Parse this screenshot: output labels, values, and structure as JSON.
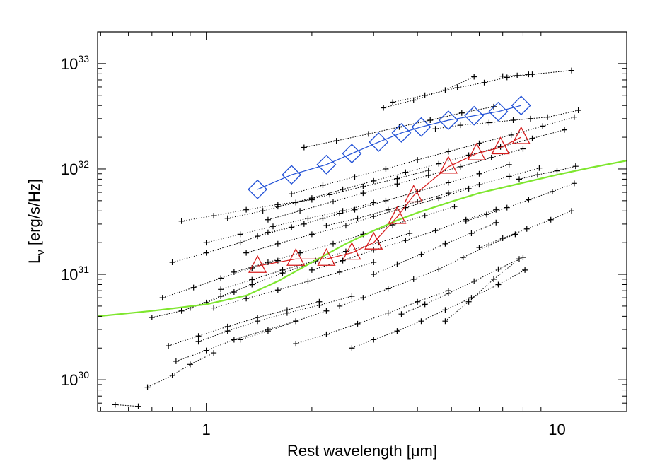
{
  "chart_data": {
    "type": "scatter",
    "title": "",
    "xlabel": "Rest wavelength [μm]",
    "ylabel_main": "L",
    "ylabel_sub": "ν",
    "ylabel_tail": " [erg/s/Hz]",
    "x_scale": "log",
    "y_scale": "log",
    "xlim": [
      0.49,
      15.8
    ],
    "ylim": [
      5e+29,
      2e+33
    ],
    "grid": false,
    "legend": "none",
    "x_ticks": [
      {
        "value": 1,
        "label": "1"
      },
      {
        "value": 10,
        "label": "10"
      }
    ],
    "y_ticks": [
      {
        "value": 1e+30,
        "base": "10",
        "exp": "30"
      },
      {
        "value": 1e+31,
        "base": "10",
        "exp": "31"
      },
      {
        "value": 1e+32,
        "base": "10",
        "exp": "32"
      },
      {
        "value": 1e+33,
        "base": "10",
        "exp": "33"
      }
    ],
    "series": [
      {
        "style": "diamond",
        "color": "#1f4fd6",
        "x": [
          1.4,
          1.75,
          2.2,
          2.6,
          3.1,
          3.6,
          4.1,
          4.9,
          5.8,
          6.8,
          7.9
        ],
        "y": [
          6.4e+31,
          8.8e+31,
          1.1e+32,
          1.4e+32,
          1.8e+32,
          2.2e+32,
          2.5e+32,
          2.9e+32,
          3.2e+32,
          3.5e+32,
          4e+32
        ]
      },
      {
        "style": "triangle",
        "color": "#d61c1c",
        "x": [
          1.4,
          1.8,
          2.2,
          2.6,
          3.0,
          3.5,
          3.9,
          4.9,
          5.9,
          6.9,
          7.9
        ],
        "y": [
          1.2e+31,
          1.4e+31,
          1.4e+31,
          1.6e+31,
          2e+31,
          3.5e+31,
          5.6e+31,
          1.05e+32,
          1.4e+32,
          1.6e+32,
          2e+32
        ]
      },
      {
        "style": "curve",
        "color": "#7ee62e",
        "x": [
          0.49,
          0.7,
          1.0,
          1.3,
          1.6,
          2.0,
          2.5,
          3.0,
          3.5,
          4.0,
          5.0,
          6.0,
          8.0,
          10.0,
          12.5,
          15.8
        ],
        "y": [
          4e+30,
          4.5e+30,
          5.2e+30,
          6.3e+30,
          8.6e+30,
          1.3e+31,
          1.95e+31,
          2.6e+31,
          3.25e+31,
          3.85e+31,
          4.9e+31,
          5.9e+31,
          7.4e+31,
          8.8e+31,
          1.03e+32,
          1.2e+32
        ]
      },
      {
        "style": "dotted-tracks",
        "color": "#000000",
        "tracks": [
          {
            "x": [
              0.55,
              0.64
            ],
            "y": [
              5.8e+29,
              5.6e+29
            ]
          },
          {
            "x": [
              0.68,
              0.8,
              0.9,
              1.05
            ],
            "y": [
              8.5e+29,
              1.1e+30,
              1.4e+30,
              1.8e+30
            ]
          },
          {
            "x": [
              0.7,
              0.85,
              1.0,
              1.2
            ],
            "y": [
              3.9e+30,
              4.5e+30,
              5.4e+30,
              6.8e+30
            ]
          },
          {
            "x": [
              0.75,
              0.92,
              1.1,
              1.35,
              1.6
            ],
            "y": [
              6e+30,
              7.5e+30,
              9.2e+30,
              1.15e+31,
              1.35e+31
            ]
          },
          {
            "x": [
              0.8,
              1.0,
              1.25,
              1.5,
              1.9,
              2.4
            ],
            "y": [
              1.3e+31,
              1.6e+31,
              2e+31,
              2.5e+31,
              3e+31,
              3.8e+31
            ]
          },
          {
            "x": [
              0.85,
              1.05,
              1.3,
              1.6,
              2.0
            ],
            "y": [
              3.2e+31,
              3.6e+31,
              4.1e+31,
              4.6e+31,
              5.1e+31
            ]
          },
          {
            "x": [
              0.78,
              0.95,
              1.15,
              1.4,
              1.7,
              2.1
            ],
            "y": [
              2.1e+30,
              2.6e+30,
              3.2e+30,
              3.9e+30,
              4.6e+30,
              5.5e+30
            ]
          },
          {
            "x": [
              0.82,
              1.0,
              1.2,
              1.5,
              1.8
            ],
            "y": [
              1.5e+30,
              1.9e+30,
              2.4e+30,
              3e+30,
              3.6e+30
            ]
          },
          {
            "x": [
              0.95,
              1.15,
              1.4,
              1.7,
              2.1,
              2.6
            ],
            "y": [
              2.3e+30,
              2.9e+30,
              3.6e+30,
              4.3e+30,
              5.1e+30,
              6.2e+30
            ]
          },
          {
            "x": [
              1.05,
              1.3,
              1.6,
              1.95,
              2.4,
              3.0
            ],
            "y": [
              4.8e+30,
              5.9e+30,
              7.1e+30,
              8.6e+30,
              1.05e+31,
              1.3e+31
            ]
          },
          {
            "x": [
              1.1,
              1.35,
              1.65,
              2.05,
              2.5,
              3.1,
              3.8
            ],
            "y": [
              7.2e+30,
              8.9e+30,
              1.1e+31,
              1.35e+31,
              1.65e+31,
              2e+31,
              2.45e+31
            ]
          },
          {
            "x": [
              1.2,
              1.5,
              1.85,
              2.3,
              2.8,
              3.4,
              4.2,
              5.1
            ],
            "y": [
              1.05e+31,
              1.3e+31,
              1.6e+31,
              1.95e+31,
              2.4e+31,
              2.95e+31,
              3.6e+31,
              4.4e+31
            ]
          },
          {
            "x": [
              1.3,
              1.6,
              2.0,
              2.5,
              3.0,
              3.7,
              4.6,
              5.6
            ],
            "y": [
              1.6e+31,
              1.95e+31,
              2.4e+31,
              2.9e+31,
              3.55e+31,
              4.3e+31,
              5.3e+31,
              6.5e+31
            ]
          },
          {
            "x": [
              1.4,
              1.75,
              2.15,
              2.65,
              3.25,
              4.0,
              4.9,
              6.0,
              7.3
            ],
            "y": [
              2.3e+31,
              2.8e+31,
              3.4e+31,
              4.1e+31,
              5e+31,
              6.1e+31,
              7.4e+31,
              9e+31,
              1.1e+32
            ]
          },
          {
            "x": [
              1.5,
              1.85,
              2.3,
              2.8,
              3.5,
              4.3,
              5.3,
              6.5,
              8.0
            ],
            "y": [
              3.3e+31,
              4e+31,
              4.9e+31,
              5.9e+31,
              7.2e+31,
              8.7e+31,
              1.05e+32,
              1.28e+32,
              1.55e+32
            ]
          },
          {
            "x": [
              1.6,
              2.0,
              2.45,
              3.0,
              3.7,
              4.6,
              5.6,
              6.9,
              8.5,
              10.5
            ],
            "y": [
              4.4e+31,
              5.3e+31,
              6.4e+31,
              7.7e+31,
              9.3e+31,
              1.12e+32,
              1.35e+32,
              1.62e+32,
              1.95e+32,
              2.35e+32
            ]
          },
          {
            "x": [
              1.75,
              2.15,
              2.65,
              3.25,
              4.0,
              4.9,
              6.0,
              7.4,
              9.1,
              11.2
            ],
            "y": [
              5.8e+31,
              7e+31,
              8.4e+31,
              1e+32,
              1.22e+32,
              1.46e+32,
              1.75e+32,
              2.1e+32,
              2.55e+32,
              3.1e+32
            ]
          },
          {
            "x": [
              1.9,
              2.35,
              2.9,
              3.55,
              4.35,
              5.35,
              6.6
            ],
            "y": [
              1.6e+32,
              1.85e+32,
              2.15e+32,
              2.5e+32,
              2.9e+32,
              3.4e+32,
              3.9e+32
            ]
          },
          {
            "x": [
              3.4,
              4.2,
              5.2,
              6.2,
              7.2,
              8.5,
              11.0
            ],
            "y": [
              4.3e+32,
              5e+32,
              5.9e+32,
              6.6e+32,
              7.4e+32,
              7.9e+32,
              8.6e+32
            ]
          },
          {
            "x": [
              3.2,
              3.9,
              4.8,
              5.8
            ],
            "y": [
              3.8e+32,
              4.5e+32,
              5.6e+32,
              7.5e+32
            ]
          },
          {
            "x": [
              7.0,
              7.7,
              8.3
            ],
            "y": [
              7.6e+32,
              7.7e+32,
              7.9e+32
            ]
          },
          {
            "x": [
              4.5,
              5.3,
              6.4,
              7.5,
              8.4,
              9.4,
              11.5
            ],
            "y": [
              2.4e+32,
              2.6e+32,
              2.75e+32,
              2.9e+32,
              3e+32,
              3.1e+32,
              3.6e+32
            ]
          },
          {
            "x": [
              2.4,
              2.8,
              3.3,
              3.9,
              4.6,
              5.4,
              6.4,
              7.6
            ],
            "y": [
              5e+30,
              6e+30,
              7.3e+30,
              9e+30,
              1.12e+31,
              1.45e+31,
              1.9e+31,
              2.4e+31
            ]
          },
          {
            "x": [
              2.6,
              3.0,
              3.5,
              4.1,
              4.8,
              5.7,
              6.8,
              8.1
            ],
            "y": [
              2e+30,
              2.4e+30,
              2.9e+30,
              3.6e+30,
              4.6e+30,
              6e+30,
              8e+30,
              1.1e+31
            ]
          },
          {
            "x": [
              3.6,
              4.2,
              4.9,
              5.8,
              6.8,
              8.0
            ],
            "y": [
              4.2e+30,
              5.2e+30,
              6.6e+30,
              8.6e+30,
              1.12e+31,
              1.45e+31
            ]
          },
          {
            "x": [
              4.8,
              5.6,
              6.6,
              7.8
            ],
            "y": [
              3.6e+30,
              5.5e+30,
              9e+30,
              1.4e+31
            ]
          },
          {
            "x": [
              3.0,
              3.5,
              4.1,
              4.8,
              5.7,
              6.7
            ],
            "y": [
              1e+31,
              1.25e+31,
              1.55e+31,
              1.95e+31,
              2.45e+31,
              3.1e+31
            ]
          },
          {
            "x": [
              5.5,
              6.3,
              7.2,
              8.3,
              9.7,
              11.2
            ],
            "y": [
              3.2e+31,
              3.7e+31,
              4.3e+31,
              5.1e+31,
              6.1e+31,
              7.3e+31
            ]
          },
          {
            "x": [
              6.0,
              7.0,
              8.2,
              9.6,
              11.0
            ],
            "y": [
              1.8e+31,
              2.2e+31,
              2.7e+31,
              3.3e+31,
              4e+31
            ]
          },
          {
            "x": [
              7.8,
              8.8,
              10.0,
              11.3
            ],
            "y": [
              8e+31,
              8.8e+31,
              9.6e+31,
              1.06e+32
            ]
          },
          {
            "x": [
              0.9,
              1.1,
              1.35,
              1.65,
              2.05
            ],
            "y": [
              4.8e+30,
              6.2e+30,
              8e+30,
              1.03e+31,
              1.32e+31
            ]
          },
          {
            "x": [
              1.0,
              1.25,
              1.55,
              1.95,
              2.45,
              3.0
            ],
            "y": [
              2e+31,
              2.4e+31,
              2.85e+31,
              3.4e+31,
              4e+31,
              4.8e+31
            ]
          },
          {
            "x": [
              1.15,
              1.45,
              1.8,
              2.25,
              2.8,
              3.5,
              4.3
            ],
            "y": [
              3.4e+31,
              4e+31,
              4.8e+31,
              5.7e+31,
              6.8e+31,
              8.1e+31,
              9.7e+31
            ]
          },
          {
            "x": [
              1.8,
              2.2,
              2.7,
              3.3,
              4.0,
              4.9
            ],
            "y": [
              2.2e+30,
              2.7e+30,
              3.4e+30,
              4.3e+30,
              5.5e+30,
              7e+30
            ]
          },
          {
            "x": [
              2.0,
              2.45,
              3.0,
              3.7,
              4.5,
              5.5,
              6.7
            ],
            "y": [
              1.1e+31,
              1.35e+31,
              1.7e+31,
              2.1e+31,
              2.6e+31,
              3.3e+31,
              4.1e+31
            ]
          },
          {
            "x": [
              2.2,
              2.7,
              3.3,
              4.0,
              4.9,
              6.0,
              7.3,
              8.9
            ],
            "y": [
              2.9e+31,
              3.4e+31,
              4.1e+31,
              4.9e+31,
              5.9e+31,
              7.1e+31,
              8.5e+31,
              1.02e+32
            ]
          },
          {
            "x": [
              1.25,
              1.5,
              1.8,
              2.2
            ],
            "y": [
              2.4e+30,
              2.9e+30,
              3.6e+30,
              4.5e+30
            ]
          }
        ]
      }
    ]
  }
}
